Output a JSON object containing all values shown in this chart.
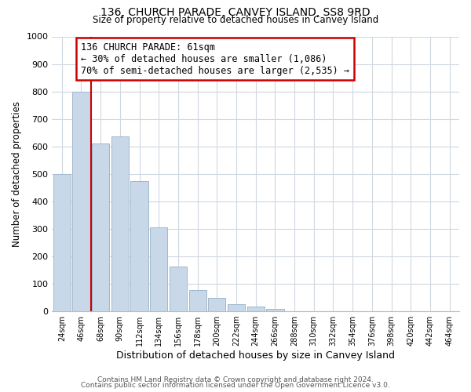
{
  "title": "136, CHURCH PARADE, CANVEY ISLAND, SS8 9RD",
  "subtitle": "Size of property relative to detached houses in Canvey Island",
  "xlabel": "Distribution of detached houses by size in Canvey Island",
  "ylabel": "Number of detached properties",
  "bin_labels": [
    "24sqm",
    "46sqm",
    "68sqm",
    "90sqm",
    "112sqm",
    "134sqm",
    "156sqm",
    "178sqm",
    "200sqm",
    "222sqm",
    "244sqm",
    "266sqm",
    "288sqm",
    "310sqm",
    "332sqm",
    "354sqm",
    "376sqm",
    "398sqm",
    "420sqm",
    "442sqm",
    "464sqm"
  ],
  "bar_values": [
    500,
    800,
    610,
    635,
    475,
    305,
    163,
    78,
    48,
    27,
    18,
    10,
    1,
    0,
    0,
    0,
    0,
    0,
    0,
    0,
    0
  ],
  "bar_color": "#c8d8e8",
  "bar_edge_color": "#a0b8cc",
  "vline_x": 1.5,
  "vline_color": "#cc0000",
  "ylim": [
    0,
    1000
  ],
  "yticks": [
    0,
    100,
    200,
    300,
    400,
    500,
    600,
    700,
    800,
    900,
    1000
  ],
  "annotation_box_text": "136 CHURCH PARADE: 61sqm\n← 30% of detached houses are smaller (1,086)\n70% of semi-detached houses are larger (2,535) →",
  "footer_line1": "Contains HM Land Registry data © Crown copyright and database right 2024.",
  "footer_line2": "Contains public sector information licensed under the Open Government Licence v3.0.",
  "background_color": "#ffffff",
  "grid_color": "#d0d8e0"
}
